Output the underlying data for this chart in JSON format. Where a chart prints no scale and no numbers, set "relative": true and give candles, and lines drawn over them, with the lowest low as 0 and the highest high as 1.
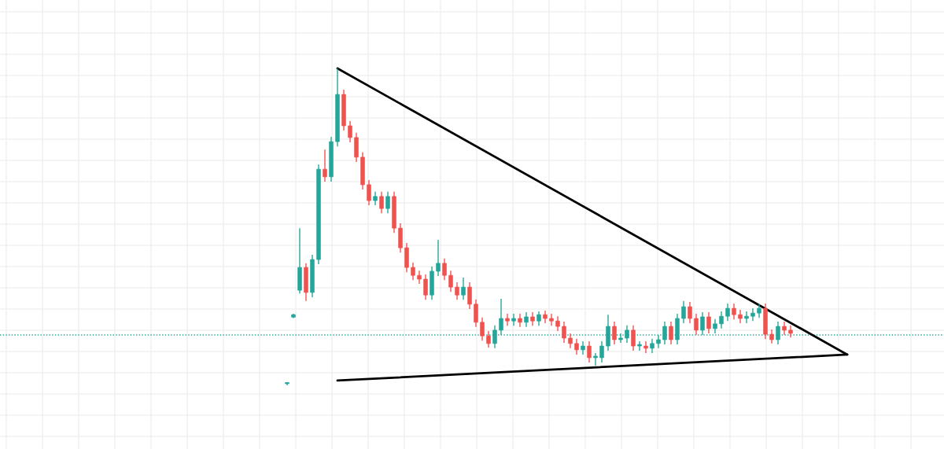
{
  "chart_data": {
    "type": "candlestick",
    "relative": true,
    "grid": true,
    "categories": [
      null,
      null,
      null,
      null,
      null,
      null,
      null,
      null,
      null,
      null,
      null,
      null,
      null,
      null,
      null,
      null,
      null,
      null,
      null,
      null,
      null,
      null,
      null,
      null,
      null,
      null,
      null,
      null,
      null,
      null,
      null,
      null,
      null,
      null,
      null,
      null,
      null,
      null,
      null,
      null,
      null,
      null,
      null,
      null,
      null,
      null,
      null,
      null,
      null,
      null,
      null,
      null,
      null,
      null,
      null,
      null,
      null,
      null,
      null,
      null,
      null,
      null,
      null,
      null,
      null,
      null,
      null,
      null,
      null,
      null,
      null,
      null,
      null,
      null,
      null,
      null,
      null,
      null,
      null,
      null,
      null,
      null,
      null,
      null,
      null,
      null,
      null,
      null,
      null,
      null
    ],
    "ohlc": [
      [
        0.005,
        0.01,
        0,
        0.005
      ],
      [
        0.215,
        0.226,
        0.212,
        0.223
      ],
      [
        0.3,
        0.496,
        0.29,
        0.372
      ],
      [
        0.372,
        0.385,
        0.266,
        0.293
      ],
      [
        0.293,
        0.412,
        0.278,
        0.397
      ],
      [
        0.397,
        0.697,
        0.382,
        0.682
      ],
      [
        0.682,
        0.744,
        0.643,
        0.658
      ],
      [
        0.658,
        0.784,
        0.643,
        0.769
      ],
      [
        0.769,
        1.0,
        0.754,
        0.918
      ],
      [
        0.918,
        0.933,
        0.804,
        0.819
      ],
      [
        0.819,
        0.834,
        0.767,
        0.782
      ],
      [
        0.782,
        0.797,
        0.705,
        0.72
      ],
      [
        0.72,
        0.735,
        0.618,
        0.633
      ],
      [
        0.633,
        0.648,
        0.568,
        0.583
      ],
      [
        0.583,
        0.611,
        0.568,
        0.596
      ],
      [
        0.596,
        0.611,
        0.543,
        0.558
      ],
      [
        0.558,
        0.611,
        0.543,
        0.596
      ],
      [
        0.596,
        0.611,
        0.481,
        0.496
      ],
      [
        0.496,
        0.511,
        0.419,
        0.434
      ],
      [
        0.434,
        0.449,
        0.357,
        0.372
      ],
      [
        0.372,
        0.387,
        0.332,
        0.347
      ],
      [
        0.347,
        0.362,
        0.32,
        0.335
      ],
      [
        0.335,
        0.35,
        0.27,
        0.285
      ],
      [
        0.285,
        0.375,
        0.27,
        0.36
      ],
      [
        0.36,
        0.459,
        0.345,
        0.385
      ],
      [
        0.385,
        0.4,
        0.332,
        0.347
      ],
      [
        0.347,
        0.362,
        0.295,
        0.31
      ],
      [
        0.31,
        0.325,
        0.27,
        0.285
      ],
      [
        0.285,
        0.34,
        0.27,
        0.31
      ],
      [
        0.31,
        0.325,
        0.241,
        0.256
      ],
      [
        0.256,
        0.271,
        0.184,
        0.199
      ],
      [
        0.199,
        0.214,
        0.141,
        0.156
      ],
      [
        0.156,
        0.171,
        0.119,
        0.132
      ],
      [
        0.132,
        0.189,
        0.117,
        0.174
      ],
      [
        0.174,
        0.273,
        0.159,
        0.211
      ],
      [
        0.211,
        0.226,
        0.188,
        0.203
      ],
      [
        0.203,
        0.226,
        0.188,
        0.211
      ],
      [
        0.211,
        0.226,
        0.184,
        0.199
      ],
      [
        0.199,
        0.231,
        0.184,
        0.216
      ],
      [
        0.216,
        0.231,
        0.188,
        0.203
      ],
      [
        0.203,
        0.233,
        0.188,
        0.223
      ],
      [
        0.223,
        0.236,
        0.196,
        0.211
      ],
      [
        0.211,
        0.226,
        0.188,
        0.203
      ],
      [
        0.203,
        0.218,
        0.171,
        0.186
      ],
      [
        0.186,
        0.201,
        0.134,
        0.149
      ],
      [
        0.149,
        0.164,
        0.117,
        0.132
      ],
      [
        0.132,
        0.147,
        0.097,
        0.112
      ],
      [
        0.112,
        0.139,
        0.097,
        0.124
      ],
      [
        0.124,
        0.139,
        0.072,
        0.087
      ],
      [
        0.087,
        0.102,
        0.062,
        0.092
      ],
      [
        0.087,
        0.139,
        0.072,
        0.124
      ],
      [
        0.124,
        0.223,
        0.109,
        0.186
      ],
      [
        0.186,
        0.201,
        0.129,
        0.144
      ],
      [
        0.144,
        0.164,
        0.134,
        0.149
      ],
      [
        0.149,
        0.189,
        0.134,
        0.174
      ],
      [
        0.174,
        0.189,
        0.109,
        0.124
      ],
      [
        0.124,
        0.139,
        0.109,
        0.129
      ],
      [
        0.124,
        0.139,
        0.102,
        0.117
      ],
      [
        0.117,
        0.147,
        0.102,
        0.132
      ],
      [
        0.132,
        0.159,
        0.117,
        0.144
      ],
      [
        0.144,
        0.201,
        0.129,
        0.186
      ],
      [
        0.186,
        0.201,
        0.129,
        0.144
      ],
      [
        0.144,
        0.226,
        0.129,
        0.211
      ],
      [
        0.211,
        0.266,
        0.196,
        0.248
      ],
      [
        0.248,
        0.263,
        0.196,
        0.211
      ],
      [
        0.211,
        0.226,
        0.159,
        0.174
      ],
      [
        0.174,
        0.231,
        0.159,
        0.216
      ],
      [
        0.216,
        0.231,
        0.164,
        0.179
      ],
      [
        0.179,
        0.209,
        0.164,
        0.194
      ],
      [
        0.194,
        0.233,
        0.179,
        0.218
      ],
      [
        0.218,
        0.258,
        0.203,
        0.243
      ],
      [
        0.243,
        0.258,
        0.208,
        0.223
      ],
      [
        0.223,
        0.238,
        0.196,
        0.211
      ],
      [
        0.211,
        0.233,
        0.196,
        0.218
      ],
      [
        0.218,
        0.243,
        0.203,
        0.228
      ],
      [
        0.228,
        0.256,
        0.213,
        0.243
      ],
      [
        0.243,
        0.258,
        0.146,
        0.161
      ],
      [
        0.161,
        0.176,
        0.132,
        0.144
      ],
      [
        0.144,
        0.201,
        0.129,
        0.186
      ],
      [
        0.186,
        0.201,
        0.159,
        0.174
      ],
      [
        0.174,
        0.189,
        0.151,
        0.164
      ],
      null,
      null,
      null,
      null,
      null,
      null,
      null,
      null,
      null
    ],
    "colors": [
      "#26a69a",
      "#26a69a",
      "#26a69a",
      "#ef5350",
      "#26a69a",
      "#26a69a",
      "#ef5350",
      "#26a69a",
      "#26a69a",
      "#ef5350",
      "#ef5350",
      "#ef5350",
      "#ef5350",
      "#ef5350",
      "#26a69a",
      "#ef5350",
      "#26a69a",
      "#ef5350",
      "#ef5350",
      "#ef5350",
      "#ef5350",
      "#ef5350",
      "#ef5350",
      "#26a69a",
      "#26a69a",
      "#ef5350",
      "#ef5350",
      "#ef5350",
      "#26a69a",
      "#ef5350",
      "#ef5350",
      "#ef5350",
      "#ef5350",
      "#26a69a",
      "#26a69a",
      "#ef5350",
      "#26a69a",
      "#ef5350",
      "#26a69a",
      "#ef5350",
      "#26a69a",
      "#ef5350",
      "#ef5350",
      "#ef5350",
      "#ef5350",
      "#ef5350",
      "#ef5350",
      "#26a69a",
      "#ef5350",
      "#26a69a",
      "#26a69a",
      "#26a69a",
      "#ef5350",
      "#26a69a",
      "#26a69a",
      "#ef5350",
      "#26a69a",
      "#ef5350",
      "#26a69a",
      "#26a69a",
      "#26a69a",
      "#ef5350",
      "#26a69a",
      "#26a69a",
      "#ef5350",
      "#ef5350",
      "#26a69a",
      "#ef5350",
      "#26a69a",
      "#26a69a",
      "#26a69a",
      "#ef5350",
      "#ef5350",
      "#26a69a",
      "#26a69a",
      "#26a69a",
      "#ef5350",
      "#ef5350",
      "#26a69a",
      "#ef5350",
      "#ef5350",
      null,
      null,
      null,
      null,
      null,
      null,
      null,
      null,
      null
    ],
    "series": [
      {
        "type": "line",
        "color": "#000000",
        "values": [
          null,
          null,
          null,
          null,
          null,
          null,
          null,
          null,
          1.0,
          null,
          null,
          null,
          null,
          null,
          null,
          null,
          null,
          null,
          null,
          null,
          null,
          null,
          null,
          null,
          null,
          null,
          null,
          null,
          null,
          null,
          null,
          null,
          null,
          null,
          null,
          null,
          null,
          null,
          null,
          null,
          null,
          null,
          null,
          null,
          null,
          null,
          null,
          null,
          null,
          null,
          null,
          null,
          null,
          null,
          null,
          null,
          null,
          null,
          null,
          null,
          null,
          null,
          null,
          null,
          null,
          null,
          null,
          null,
          null,
          null,
          null,
          null,
          null,
          null,
          null,
          null,
          null,
          null,
          null,
          null,
          null,
          null,
          null,
          null,
          null,
          null,
          null,
          null,
          null,
          0.097
        ]
      },
      {
        "type": "line",
        "color": "#000000",
        "values": [
          null,
          null,
          null,
          null,
          null,
          null,
          null,
          null,
          0.015,
          null,
          null,
          null,
          null,
          null,
          null,
          null,
          null,
          null,
          null,
          null,
          null,
          null,
          null,
          null,
          null,
          null,
          null,
          null,
          null,
          null,
          null,
          null,
          null,
          null,
          null,
          null,
          null,
          null,
          null,
          null,
          null,
          null,
          null,
          null,
          null,
          null,
          null,
          null,
          null,
          null,
          null,
          null,
          null,
          null,
          null,
          null,
          null,
          null,
          null,
          null,
          null,
          null,
          null,
          null,
          null,
          null,
          null,
          null,
          null,
          null,
          null,
          null,
          null,
          null,
          null,
          null,
          null,
          null,
          null,
          null,
          null,
          null,
          null,
          null,
          null,
          null,
          null,
          null,
          null,
          0.097
        ]
      }
    ],
    "ref_lines": [
      {
        "axis": "y",
        "value": 0.159,
        "color": "#26a69a",
        "line_style": "dotted"
      }
    ]
  }
}
